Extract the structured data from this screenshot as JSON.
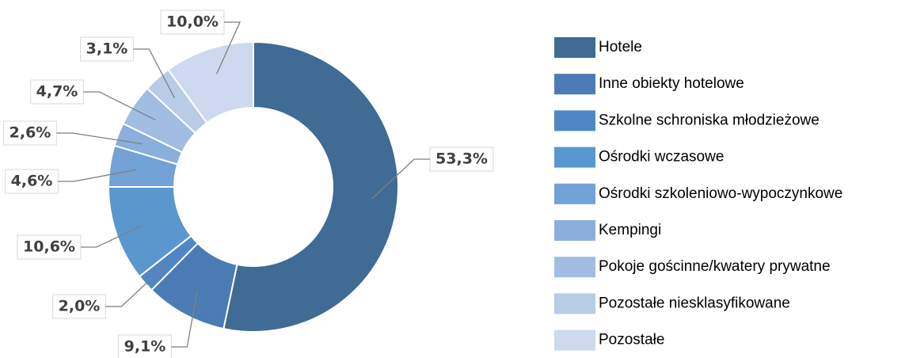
{
  "chart_data": {
    "type": "donut",
    "categories": [
      "Hotele",
      "Inne obiekty hotelowe",
      "Szkolne schroniska młodzieżowe",
      "Ośrodki wczasowe",
      "Ośrodki szkoleniowo-wypoczynkowe",
      "Kempingi",
      "Pokoje gościnne/kwatery prywatne",
      "Pozostałe niesklasyfikowane",
      "Pozostałe"
    ],
    "values": [
      53.3,
      9.1,
      2.0,
      10.6,
      4.6,
      2.6,
      4.7,
      3.1,
      10.0
    ],
    "value_labels": [
      "53,3%",
      "9,1%",
      "2,0%",
      "10,6%",
      "4,6%",
      "2,6%",
      "4,7%",
      "3,1%",
      "10,0%"
    ],
    "colors": [
      "#3f6b94",
      "#4a7bb4",
      "#4f87c4",
      "#5a97cf",
      "#73a2d8",
      "#8aafdc",
      "#a1bde2",
      "#b8cce8",
      "#cdd9ee"
    ],
    "legend": "right"
  }
}
